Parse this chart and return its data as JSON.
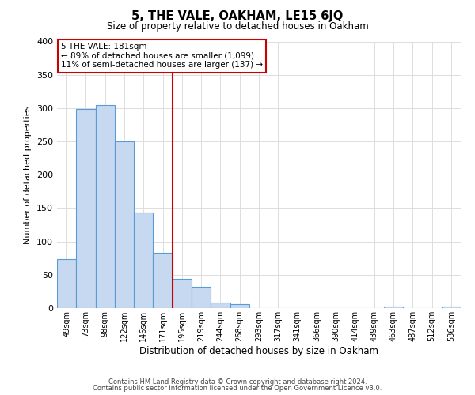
{
  "title": "5, THE VALE, OAKHAM, LE15 6JQ",
  "subtitle": "Size of property relative to detached houses in Oakham",
  "xlabel": "Distribution of detached houses by size in Oakham",
  "ylabel": "Number of detached properties",
  "bar_labels": [
    "49sqm",
    "73sqm",
    "98sqm",
    "122sqm",
    "146sqm",
    "171sqm",
    "195sqm",
    "219sqm",
    "244sqm",
    "268sqm",
    "293sqm",
    "317sqm",
    "341sqm",
    "366sqm",
    "390sqm",
    "414sqm",
    "439sqm",
    "463sqm",
    "487sqm",
    "512sqm",
    "536sqm"
  ],
  "bar_values": [
    73,
    299,
    305,
    250,
    144,
    83,
    44,
    32,
    8,
    6,
    0,
    0,
    0,
    0,
    0,
    0,
    0,
    2,
    0,
    0,
    2
  ],
  "bar_color": "#c6d9f0",
  "bar_edge_color": "#5b9bd5",
  "vline_x_idx": 5,
  "vline_color": "#cc0000",
  "ylim": [
    0,
    400
  ],
  "yticks": [
    0,
    50,
    100,
    150,
    200,
    250,
    300,
    350,
    400
  ],
  "annotation_title": "5 THE VALE: 181sqm",
  "annotation_line1": "← 89% of detached houses are smaller (1,099)",
  "annotation_line2": "11% of semi-detached houses are larger (137) →",
  "annotation_box_color": "#ffffff",
  "annotation_box_edge": "#cc0000",
  "footer_line1": "Contains HM Land Registry data © Crown copyright and database right 2024.",
  "footer_line2": "Contains public sector information licensed under the Open Government Licence v3.0.",
  "background_color": "#ffffff",
  "grid_color": "#dddddd"
}
